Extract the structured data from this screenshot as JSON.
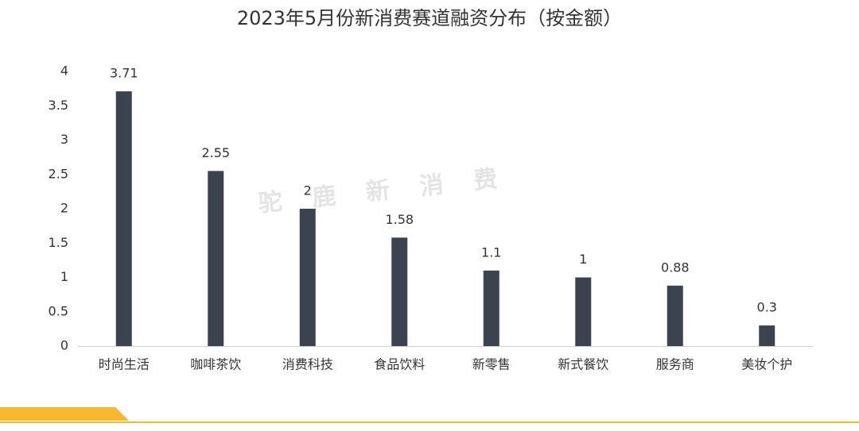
{
  "chart_data": {
    "type": "bar",
    "title": "2023年5月份新消费赛道融资分布（按金额）",
    "watermark": "驼鹿新消费",
    "categories": [
      "时尚生活",
      "咖啡茶饮",
      "消费科技",
      "食品饮料",
      "新零售",
      "新式餐饮",
      "服务商",
      "美妆个护"
    ],
    "values": [
      3.71,
      2.55,
      2,
      1.58,
      1.1,
      1,
      0.88,
      0.3
    ],
    "color": "#3b4350",
    "ylim": [
      0,
      4
    ],
    "yticks": [
      0,
      0.5,
      1,
      1.5,
      2,
      2.5,
      3,
      3.5,
      4
    ],
    "grid": false
  }
}
